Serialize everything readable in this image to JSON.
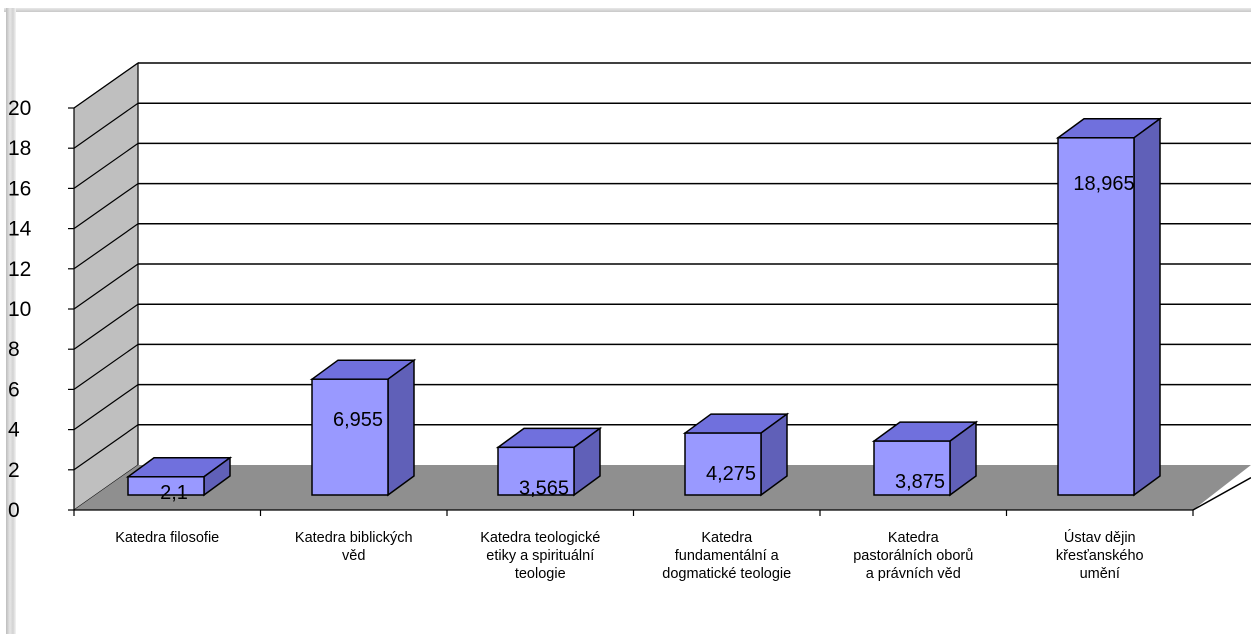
{
  "chart_data": {
    "type": "bar",
    "title": "",
    "xlabel": "",
    "ylabel": "",
    "ylim": [
      0,
      20
    ],
    "yticks": [
      "0",
      "2",
      "4",
      "6",
      "8",
      "10",
      "12",
      "14",
      "16",
      "18",
      "20"
    ],
    "grid": true,
    "legend": "none",
    "categories": [
      "Katedra filosofie",
      "Katedra biblických věd",
      "Katedra teologické etiky a spirituální teologie",
      "Katedra fundamentální a dogmatické teologie",
      "Katedra pastorálních oborů a právních věd",
      "Ústav dějin křesťanského umění"
    ],
    "category_lines": [
      [
        "Katedra filosofie"
      ],
      [
        "Katedra biblických",
        "věd"
      ],
      [
        "Katedra teologické",
        "etiky a spirituální",
        "teologie"
      ],
      [
        "Katedra",
        "fundamentální a",
        "dogmatické teologie"
      ],
      [
        "Katedra",
        "pastorálních oborů",
        "a právních věd"
      ],
      [
        "Ústav dějin",
        "křesťanského",
        "umění"
      ]
    ],
    "values": [
      2.1,
      6.955,
      3.565,
      4.275,
      3.875,
      18.965
    ],
    "data_labels": [
      "2,1",
      "6,955",
      "3,565",
      "4,275",
      "3,875",
      "18,965"
    ],
    "colors": {
      "bar_front": "#9999ff",
      "bar_top": "#7070dd",
      "bar_side": "#6060b8",
      "wall": "#bfbfbf",
      "floor": "#8f8f8f",
      "gridline": "#000000"
    }
  }
}
